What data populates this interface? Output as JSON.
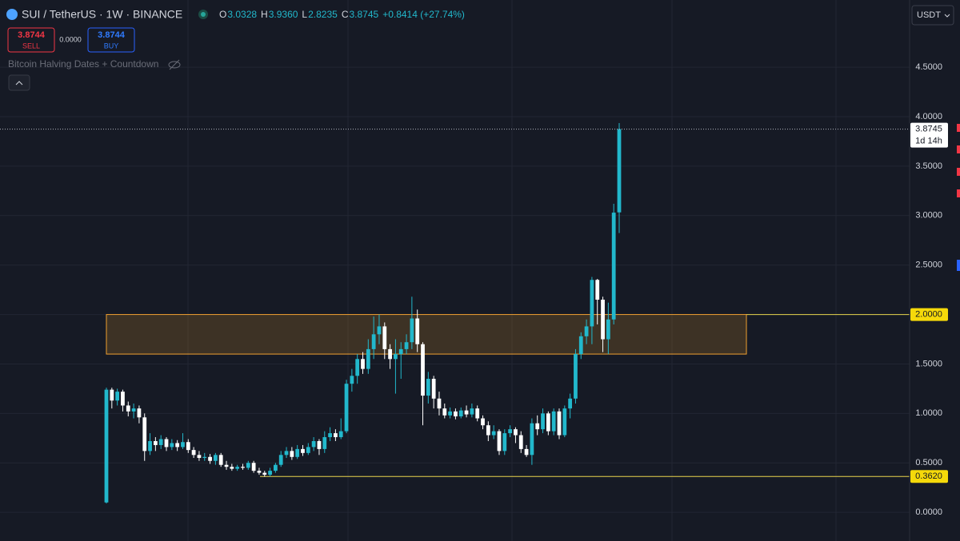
{
  "header": {
    "symbol": "SUI / TetherUS · 1W · BINANCE",
    "ohlc": [
      {
        "label": "O",
        "value": "3.0328"
      },
      {
        "label": "H",
        "value": "3.9360"
      },
      {
        "label": "L",
        "value": "2.8235"
      },
      {
        "label": "C",
        "value": "3.8745"
      }
    ],
    "change": "+0.8414 (+27.74%)"
  },
  "trade": {
    "sell_price": "3.8744",
    "sell": "SELL",
    "spread": "0.0000",
    "buy_price": "3.8744",
    "buy": "BUY"
  },
  "indicator": "Bitcoin Halving Dates + Countdown",
  "currency": "USDT",
  "chart_data": {
    "type": "candlestick",
    "up_color": "#22b8cc",
    "down_color": "#ffffff",
    "ylim": [
      -0.29,
      5.18
    ],
    "yticks": [
      {
        "value": 0,
        "label": "0.0000"
      },
      {
        "value": 0.5,
        "label": "0.5000"
      },
      {
        "value": 1,
        "label": "1.0000"
      },
      {
        "value": 1.5,
        "label": "1.5000"
      },
      {
        "value": 2,
        "label": "2.0000"
      },
      {
        "value": 2.5,
        "label": "2.5000"
      },
      {
        "value": 3,
        "label": "3.0000"
      },
      {
        "value": 3.5,
        "label": "3.5000"
      },
      {
        "value": 4,
        "label": "4.0000"
      },
      {
        "value": 4.5,
        "label": "4.5000"
      }
    ],
    "open": [
      0.1,
      1.24,
      1.13,
      1.22,
      1.08,
      1.02,
      1.05,
      0.96,
      0.62,
      0.72,
      0.68,
      0.74,
      0.66,
      0.7,
      0.66,
      0.71,
      0.63,
      0.58,
      0.55,
      0.56,
      0.52,
      0.58,
      0.48,
      0.46,
      0.44,
      0.46,
      0.45,
      0.5,
      0.42,
      0.4,
      0.38,
      0.42,
      0.48,
      0.58,
      0.62,
      0.56,
      0.64,
      0.6,
      0.66,
      0.72,
      0.64,
      0.76,
      0.8,
      0.76,
      0.82,
      1.3,
      1.38,
      1.55,
      1.45,
      1.65,
      1.8,
      1.88,
      1.65,
      1.55,
      1.6,
      1.65,
      1.72,
      1.96,
      1.7,
      1.18,
      1.35,
      1.15,
      1.05,
      0.98,
      1.02,
      0.97,
      1.03,
      0.99,
      1.05,
      0.95,
      0.88,
      0.78,
      0.82,
      0.62,
      0.8,
      0.84,
      0.78,
      0.64,
      0.58,
      0.9,
      0.84,
      1.0,
      0.82,
      1.02,
      0.78,
      1.05,
      1.15,
      1.6,
      1.78,
      1.88,
      2.35,
      2.15,
      1.75,
      1.95,
      3.0328
    ],
    "high": [
      1.26,
      1.26,
      1.25,
      1.24,
      1.12,
      1.1,
      1.08,
      1.0,
      0.8,
      0.76,
      0.78,
      0.76,
      0.74,
      0.73,
      0.8,
      0.74,
      0.66,
      0.62,
      0.6,
      0.59,
      0.6,
      0.6,
      0.52,
      0.49,
      0.48,
      0.49,
      0.52,
      0.52,
      0.45,
      0.42,
      0.45,
      0.5,
      0.62,
      0.66,
      0.66,
      0.68,
      0.68,
      0.7,
      0.76,
      0.74,
      0.82,
      0.86,
      0.84,
      0.95,
      1.34,
      1.45,
      1.6,
      1.62,
      1.75,
      1.98,
      2.0,
      1.92,
      1.7,
      1.75,
      1.72,
      1.8,
      2.18,
      2.05,
      1.72,
      1.42,
      1.38,
      1.22,
      1.1,
      1.06,
      1.05,
      1.06,
      1.08,
      1.1,
      1.08,
      0.98,
      0.92,
      0.88,
      0.84,
      0.84,
      0.88,
      0.86,
      0.82,
      0.68,
      0.95,
      0.98,
      1.05,
      1.02,
      1.05,
      1.05,
      1.08,
      1.2,
      1.65,
      1.82,
      1.95,
      2.38,
      2.36,
      2.18,
      2.12,
      3.12,
      3.936
    ],
    "low": [
      0.09,
      1.05,
      1.08,
      1.02,
      0.97,
      0.95,
      0.9,
      0.52,
      0.58,
      0.62,
      0.64,
      0.62,
      0.63,
      0.62,
      0.64,
      0.6,
      0.55,
      0.52,
      0.52,
      0.49,
      0.48,
      0.46,
      0.43,
      0.42,
      0.42,
      0.43,
      0.43,
      0.4,
      0.38,
      0.36,
      0.362,
      0.4,
      0.46,
      0.55,
      0.53,
      0.54,
      0.57,
      0.58,
      0.62,
      0.58,
      0.6,
      0.72,
      0.72,
      0.74,
      0.8,
      1.22,
      1.3,
      1.4,
      1.4,
      1.55,
      1.7,
      1.55,
      1.45,
      1.2,
      1.35,
      1.6,
      1.65,
      1.62,
      0.88,
      1.1,
      1.05,
      0.98,
      0.95,
      0.95,
      0.94,
      0.95,
      0.96,
      0.96,
      0.92,
      0.84,
      0.72,
      0.74,
      0.58,
      0.58,
      0.76,
      0.7,
      0.6,
      0.56,
      0.48,
      0.78,
      0.8,
      0.78,
      0.78,
      0.74,
      0.76,
      0.95,
      1.1,
      1.55,
      1.7,
      1.7,
      1.9,
      1.62,
      1.6,
      1.9,
      2.8235
    ],
    "close": [
      1.24,
      1.13,
      1.22,
      1.08,
      1.02,
      1.05,
      0.96,
      0.62,
      0.72,
      0.68,
      0.74,
      0.66,
      0.7,
      0.66,
      0.71,
      0.63,
      0.58,
      0.55,
      0.56,
      0.52,
      0.58,
      0.48,
      0.46,
      0.44,
      0.46,
      0.45,
      0.5,
      0.42,
      0.4,
      0.38,
      0.42,
      0.48,
      0.58,
      0.62,
      0.56,
      0.64,
      0.6,
      0.66,
      0.72,
      0.64,
      0.76,
      0.8,
      0.76,
      0.82,
      1.3,
      1.38,
      1.55,
      1.45,
      1.65,
      1.8,
      1.88,
      1.65,
      1.55,
      1.6,
      1.65,
      1.72,
      1.96,
      1.7,
      1.18,
      1.35,
      1.15,
      1.05,
      0.98,
      1.02,
      0.97,
      1.03,
      0.99,
      1.05,
      0.95,
      0.88,
      0.78,
      0.82,
      0.62,
      0.8,
      0.84,
      0.78,
      0.64,
      0.58,
      0.9,
      0.84,
      1.0,
      0.82,
      1.02,
      0.78,
      1.05,
      1.15,
      1.6,
      1.78,
      1.88,
      2.35,
      2.15,
      1.75,
      1.95,
      3.03,
      3.8745
    ],
    "zone": {
      "low": 1.6,
      "high": 2.0
    },
    "levels": [
      {
        "value": 2.0,
        "label": "2.0000"
      },
      {
        "value": 0.362,
        "label": "0.3620"
      }
    ],
    "last_price": {
      "value": 3.8745,
      "label": "3.8745"
    },
    "countdown": "1d 14h"
  }
}
